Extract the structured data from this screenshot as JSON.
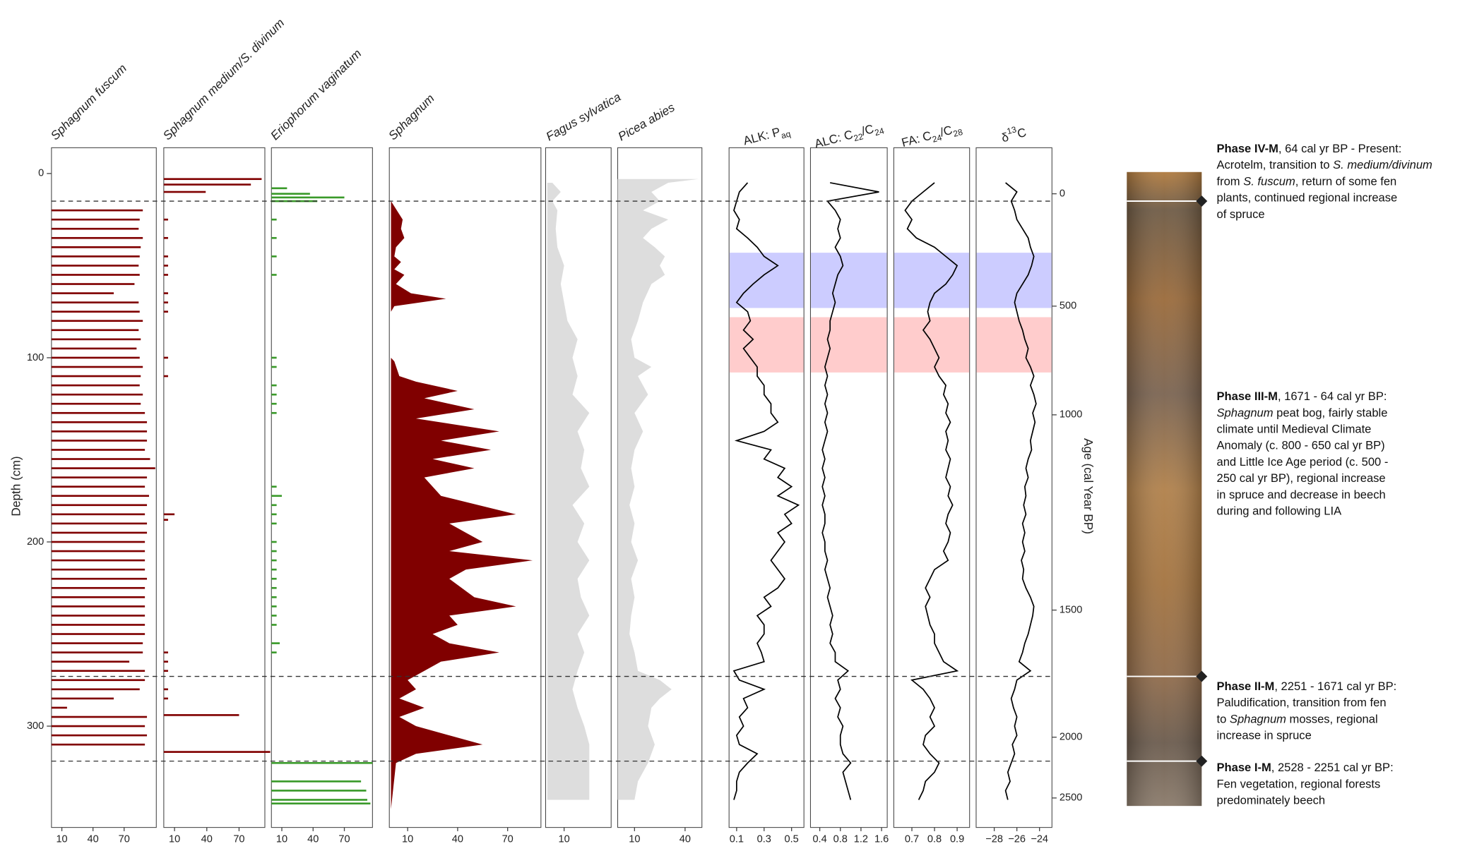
{
  "chart_data": [
    {
      "type": "bar",
      "title": "Sphagnum fuscum",
      "color": "#800000",
      "xlim": [
        0,
        101
      ],
      "xticks": [
        10,
        40,
        70
      ],
      "ylim": [
        -14,
        355
      ],
      "yticks": [
        0,
        100,
        200,
        300
      ],
      "ylabel": "Depth (cm)",
      "depths": [
        20,
        25,
        30,
        35,
        40,
        45,
        50,
        55,
        60,
        65,
        70,
        75,
        80,
        85,
        90,
        95,
        100,
        105,
        110,
        115,
        120,
        125,
        130,
        135,
        140,
        145,
        150,
        155,
        160,
        165,
        170,
        175,
        180,
        185,
        190,
        195,
        200,
        205,
        210,
        215,
        220,
        225,
        230,
        235,
        240,
        245,
        250,
        255,
        260,
        265,
        270,
        275,
        280,
        285,
        290,
        295,
        300,
        305,
        310
      ],
      "values": [
        88,
        85,
        84,
        88,
        86,
        85,
        84,
        85,
        80,
        60,
        84,
        85,
        88,
        84,
        86,
        82,
        85,
        88,
        86,
        85,
        88,
        86,
        90,
        92,
        92,
        92,
        90,
        95,
        100,
        92,
        90,
        94,
        92,
        90,
        92,
        92,
        90,
        90,
        90,
        90,
        92,
        90,
        90,
        90,
        90,
        90,
        90,
        88,
        88,
        75,
        90,
        90,
        85,
        60,
        15,
        92,
        90,
        92,
        90
      ]
    },
    {
      "type": "bar",
      "title": "Sphagnum medium/S. divinum",
      "color": "#800000",
      "xlim": [
        0,
        94
      ],
      "xticks": [
        10,
        40,
        70
      ],
      "depths": [
        3,
        6,
        10,
        25,
        35,
        45,
        50,
        55,
        65,
        70,
        75,
        100,
        110,
        185,
        188,
        260,
        265,
        270,
        280,
        285,
        294,
        314
      ],
      "values": [
        91,
        81,
        39,
        4,
        4,
        4,
        4,
        4,
        4,
        4,
        4,
        4,
        4,
        10,
        4,
        4,
        4,
        4,
        4,
        4,
        70,
        99
      ]
    },
    {
      "type": "bar",
      "title": "Eriophorum vaginatum",
      "color": "#3a9a2a",
      "xlim": [
        0,
        97
      ],
      "xticks": [
        10,
        40,
        70
      ],
      "depths": [
        8,
        11,
        13,
        15,
        25,
        35,
        45,
        55,
        100,
        105,
        115,
        120,
        125,
        130,
        170,
        175,
        180,
        185,
        190,
        200,
        205,
        210,
        215,
        220,
        225,
        230,
        235,
        240,
        245,
        255,
        260,
        320,
        330,
        335,
        340,
        342
      ],
      "values": [
        15,
        37,
        70,
        44,
        5,
        5,
        5,
        5,
        5,
        5,
        5,
        5,
        5,
        5,
        5,
        10,
        5,
        5,
        5,
        5,
        5,
        5,
        5,
        5,
        5,
        5,
        5,
        5,
        5,
        8,
        5,
        97,
        86,
        91,
        92,
        95
      ]
    },
    {
      "type": "area",
      "title": "Sphagnum",
      "color": "#800000",
      "xlim": [
        -1,
        90
      ],
      "xticks": [
        10,
        40,
        70
      ],
      "depths": [
        15,
        25,
        30,
        35,
        40,
        45,
        48,
        52,
        55,
        60,
        65,
        68,
        72,
        75,
        100,
        102,
        110,
        113,
        118,
        122,
        128,
        133,
        140,
        145,
        150,
        155,
        160,
        165,
        175,
        185,
        190,
        195,
        200,
        205,
        210,
        215,
        220,
        230,
        235,
        240,
        245,
        250,
        255,
        260,
        265,
        270,
        275,
        280,
        285,
        290,
        295,
        300,
        305,
        310,
        315,
        320,
        345
      ],
      "values": [
        0,
        7,
        6,
        8,
        3,
        2,
        6,
        2,
        8,
        3,
        12,
        33,
        2,
        0,
        0,
        2,
        5,
        15,
        40,
        20,
        50,
        15,
        65,
        30,
        60,
        25,
        50,
        20,
        30,
        75,
        35,
        45,
        55,
        35,
        85,
        45,
        35,
        50,
        75,
        35,
        40,
        25,
        35,
        65,
        30,
        20,
        10,
        15,
        5,
        20,
        5,
        15,
        35,
        55,
        15,
        3,
        0
      ]
    },
    {
      "type": "area",
      "title": "Fagus sylvatica",
      "color": "#dddddd",
      "xlim": [
        -1,
        38
      ],
      "xticks": [
        10
      ],
      "depths": [
        5,
        10,
        15,
        20,
        30,
        40,
        50,
        60,
        70,
        80,
        90,
        100,
        110,
        120,
        130,
        140,
        150,
        160,
        170,
        180,
        190,
        200,
        210,
        220,
        230,
        240,
        250,
        260,
        270,
        280,
        290,
        300,
        310,
        320,
        330,
        340
      ],
      "values": [
        3,
        8,
        3,
        6,
        5,
        6,
        10,
        8,
        10,
        12,
        18,
        15,
        18,
        15,
        25,
        18,
        22,
        20,
        25,
        15,
        22,
        18,
        25,
        18,
        20,
        25,
        18,
        22,
        18,
        15,
        18,
        22,
        25,
        25,
        25,
        25
      ]
    },
    {
      "type": "area",
      "title": "Picea abies",
      "color": "#dddddd",
      "xlim": [
        0,
        50
      ],
      "xticks": [
        10,
        40
      ],
      "depths": [
        3,
        5,
        10,
        15,
        20,
        25,
        30,
        35,
        40,
        45,
        50,
        55,
        60,
        70,
        80,
        90,
        100,
        105,
        110,
        120,
        130,
        140,
        150,
        160,
        170,
        180,
        190,
        200,
        210,
        220,
        230,
        240,
        250,
        260,
        270,
        275,
        280,
        285,
        290,
        300,
        310,
        320,
        330,
        340
      ],
      "values": [
        48,
        30,
        20,
        25,
        15,
        30,
        20,
        15,
        22,
        28,
        25,
        28,
        20,
        15,
        12,
        8,
        10,
        20,
        12,
        18,
        10,
        15,
        10,
        8,
        10,
        7,
        10,
        8,
        12,
        8,
        10,
        8,
        7,
        10,
        12,
        25,
        32,
        25,
        20,
        18,
        22,
        18,
        12,
        10
      ]
    },
    {
      "type": "line",
      "color": "#000000",
      "y2label": "Age (cal Year BP)",
      "y2ticks": [
        0,
        500,
        1000,
        1500,
        2000,
        2500
      ],
      "y2_depths": [
        11,
        72,
        131,
        237,
        306,
        339
      ],
      "depths": [
        5,
        10,
        15,
        20,
        25,
        30,
        35,
        40,
        45,
        50,
        55,
        60,
        65,
        70,
        75,
        80,
        85,
        90,
        95,
        100,
        105,
        110,
        115,
        120,
        125,
        130,
        135,
        140,
        145,
        150,
        155,
        160,
        165,
        170,
        175,
        180,
        185,
        190,
        195,
        200,
        205,
        210,
        215,
        220,
        225,
        230,
        235,
        240,
        245,
        250,
        255,
        260,
        265,
        270,
        275,
        280,
        285,
        290,
        295,
        300,
        305,
        310,
        315,
        320,
        325,
        330,
        335,
        340
      ],
      "series": [
        {
          "title": [
            {
              "text": "ALK: P"
            },
            {
              "sub": "aq"
            }
          ],
          "xlim": [
            0.045,
            0.59
          ],
          "xticks": [
            0.1,
            0.3,
            0.5
          ],
          "values": [
            0.18,
            0.12,
            0.1,
            0.08,
            0.12,
            0.1,
            0.18,
            0.25,
            0.3,
            0.4,
            0.3,
            0.22,
            0.15,
            0.1,
            0.18,
            0.2,
            0.15,
            0.22,
            0.15,
            0.2,
            0.25,
            0.25,
            0.3,
            0.3,
            0.35,
            0.35,
            0.4,
            0.3,
            0.1,
            0.35,
            0.3,
            0.45,
            0.4,
            0.5,
            0.4,
            0.55,
            0.45,
            0.5,
            0.4,
            0.45,
            0.4,
            0.35,
            0.4,
            0.45,
            0.4,
            0.3,
            0.35,
            0.25,
            0.3,
            0.3,
            0.25,
            0.28,
            0.3,
            0.08,
            0.12,
            0.3,
            0.15,
            0.18,
            0.12,
            0.15,
            0.1,
            0.12,
            0.25,
            0.18,
            0.12,
            0.1,
            0.1,
            0.08
          ]
        },
        {
          "title": [
            {
              "text": "ALC: C"
            },
            {
              "sub": "22"
            },
            {
              "text": "/C"
            },
            {
              "sub": "24"
            }
          ],
          "xlim": [
            0.22,
            1.71
          ],
          "xticks": [
            0.4,
            0.8,
            1.2,
            1.6
          ],
          "values": [
            0.6,
            1.55,
            0.55,
            0.7,
            0.8,
            0.75,
            0.8,
            0.7,
            0.8,
            0.85,
            0.75,
            0.7,
            0.65,
            0.7,
            0.65,
            0.6,
            0.6,
            0.55,
            0.6,
            0.55,
            0.5,
            0.55,
            0.5,
            0.55,
            0.5,
            0.55,
            0.5,
            0.55,
            0.5,
            0.45,
            0.5,
            0.45,
            0.5,
            0.45,
            0.5,
            0.45,
            0.5,
            0.5,
            0.45,
            0.5,
            0.5,
            0.55,
            0.5,
            0.55,
            0.6,
            0.55,
            0.6,
            0.65,
            0.6,
            0.65,
            0.6,
            0.7,
            0.7,
            0.95,
            0.75,
            0.8,
            0.7,
            0.8,
            0.75,
            0.85,
            0.8,
            0.8,
            0.85,
            1.0,
            0.85,
            0.9,
            0.95,
            1.0
          ]
        },
        {
          "title": [
            {
              "text": "FA: C"
            },
            {
              "sub": "24"
            },
            {
              "text": "/C"
            },
            {
              "sub": "28"
            }
          ],
          "xlim": [
            0.62,
            0.955
          ],
          "xticks": [
            0.7,
            0.8,
            0.9
          ],
          "values": [
            0.8,
            0.75,
            0.7,
            0.67,
            0.7,
            0.68,
            0.72,
            0.8,
            0.85,
            0.9,
            0.88,
            0.85,
            0.8,
            0.78,
            0.77,
            0.78,
            0.75,
            0.78,
            0.8,
            0.82,
            0.8,
            0.82,
            0.85,
            0.84,
            0.86,
            0.85,
            0.87,
            0.85,
            0.86,
            0.85,
            0.87,
            0.86,
            0.85,
            0.87,
            0.86,
            0.88,
            0.86,
            0.85,
            0.87,
            0.86,
            0.84,
            0.86,
            0.8,
            0.78,
            0.76,
            0.78,
            0.76,
            0.77,
            0.78,
            0.8,
            0.8,
            0.82,
            0.84,
            0.9,
            0.7,
            0.75,
            0.78,
            0.8,
            0.78,
            0.8,
            0.76,
            0.75,
            0.78,
            0.82,
            0.8,
            0.76,
            0.75,
            0.73
          ]
        },
        {
          "title": [
            {
              "text": "δ"
            },
            {
              "sup": "13"
            },
            {
              "text": "C"
            }
          ],
          "xlim": [
            -29.6,
            -22.9
          ],
          "xticks": [
            {
              "value": -28,
              "label": "−28"
            },
            {
              "value": -26,
              "label": "−26"
            },
            {
              "value": -24,
              "label": "−24"
            }
          ],
          "values": [
            -27,
            -26,
            -26.5,
            -26.2,
            -26,
            -25.5,
            -25,
            -24.8,
            -24.5,
            -24.7,
            -25,
            -25.5,
            -26,
            -26.2,
            -26,
            -25.8,
            -25.5,
            -25.3,
            -25,
            -25.2,
            -24.8,
            -24.5,
            -24.8,
            -24.5,
            -24.3,
            -24.6,
            -24.4,
            -24.6,
            -24.8,
            -24.7,
            -25,
            -25.2,
            -25,
            -25.3,
            -25.2,
            -25.4,
            -25.2,
            -25.5,
            -25.3,
            -25.5,
            -25.3,
            -25.6,
            -25.4,
            -25.5,
            -25.2,
            -24.8,
            -24.5,
            -24.6,
            -24.8,
            -25,
            -25.3,
            -25.5,
            -25.8,
            -24.8,
            -26,
            -26.2,
            -26.5,
            -26.3,
            -26,
            -26.2,
            -26,
            -26.4,
            -26.2,
            -26.5,
            -26.8,
            -26.6,
            -27,
            -26.8
          ]
        }
      ]
    }
  ],
  "zones": {
    "depths": [
      15,
      273,
      319
    ]
  },
  "bands": [
    {
      "from": 43,
      "to": 73,
      "color": "#ccccff"
    },
    {
      "from": 78,
      "to": 108,
      "color": "#ffcccc"
    }
  ],
  "phases": [
    {
      "lines": [
        [
          {
            "b": "Phase IV-M"
          },
          {
            "text": ", 64 cal yr BP - Present:"
          }
        ],
        [
          {
            "text": "Acrotelm, transition to "
          },
          {
            "i": "S. medium/divinum"
          }
        ],
        [
          {
            "text": "from "
          },
          {
            "i": "S. fuscum"
          },
          {
            "text": ", return of some fen"
          }
        ],
        [
          {
            "text": "plants, continued regional increase"
          }
        ],
        [
          {
            "text": "of spruce"
          }
        ]
      ]
    },
    {
      "lines": [
        [
          {
            "b": "Phase III-M"
          },
          {
            "text": ", 1671 - 64 cal yr BP:"
          }
        ],
        [
          {
            "i": "Sphagnum"
          },
          {
            "text": " peat bog, fairly stable"
          }
        ],
        [
          {
            "text": "climate until Medieval Climate"
          }
        ],
        [
          {
            "text": "Anomaly (c. 800 - 650 cal yr BP)"
          }
        ],
        [
          {
            "text": "and Little Ice Age period (c. 500 -"
          }
        ],
        [
          {
            "text": "250 cal yr BP), regional  increase"
          }
        ],
        [
          {
            "text": "in spruce and decrease in beech"
          }
        ],
        [
          {
            "text": "during and following LIA"
          }
        ]
      ]
    },
    {
      "lines": [
        [
          {
            "b": "Phase II-M"
          },
          {
            "text": ", 2251 - 1671 cal yr BP:"
          }
        ],
        [
          {
            "text": "Paludification, transition from fen"
          }
        ],
        [
          {
            "text": "to "
          },
          {
            "i": "Sphagnum"
          },
          {
            "text": " mosses, regional"
          }
        ],
        [
          {
            "text": "increase in spruce"
          }
        ]
      ]
    },
    {
      "lines": [
        [
          {
            "b": "Phase I-M"
          },
          {
            "text": ", 2528 - 2251 cal yr BP:"
          }
        ],
        [
          {
            "text": "Fen vegetation, regional forests"
          }
        ],
        [
          {
            "text": "predominately beech"
          }
        ]
      ]
    }
  ]
}
